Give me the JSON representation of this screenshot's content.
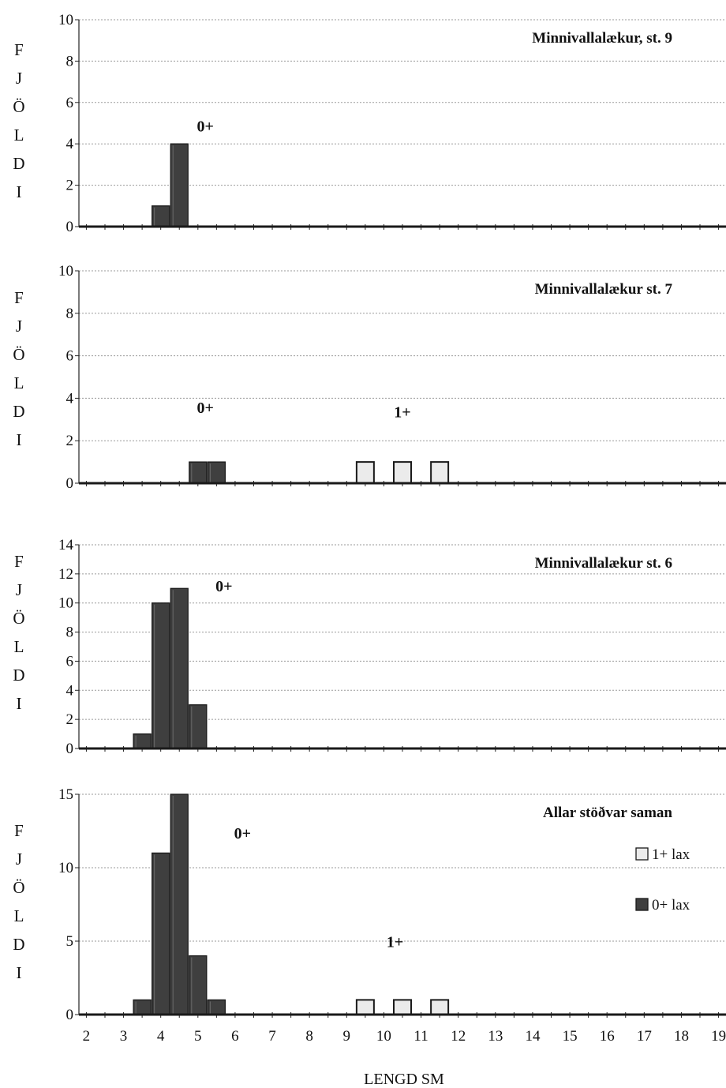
{
  "figure": {
    "xlabel": "LENGD SM",
    "ylabel": "FJÖLDI",
    "x_ticks": [
      "2",
      "3",
      "4",
      "5",
      "6",
      "7",
      "8",
      "9",
      "10",
      "11",
      "12",
      "13",
      "14",
      "15",
      "16",
      "17",
      "18",
      "19"
    ],
    "legend": [
      {
        "label": "1+ lax",
        "color": "#ebebeb"
      },
      {
        "label": "0+ lax",
        "color": "#3f3f3f"
      }
    ]
  },
  "chart_data": [
    {
      "type": "bar",
      "title": "Minnivallalækur,  st. 9",
      "ylim": [
        0,
        10
      ],
      "yticks": [
        0,
        2,
        4,
        6,
        8,
        10
      ],
      "xlim": [
        1.8,
        19.2
      ],
      "grid": true,
      "annotations": [
        {
          "text": "0+",
          "x": 5.2,
          "y": 4.6
        }
      ],
      "series": [
        {
          "name": "1+ lax",
          "x": [],
          "values": []
        },
        {
          "name": "0+ lax",
          "x": [
            4.0,
            4.5
          ],
          "values": [
            1,
            4
          ]
        }
      ]
    },
    {
      "type": "bar",
      "title": "Minnivallalækur  st. 7",
      "ylim": [
        0,
        10
      ],
      "yticks": [
        0,
        2,
        4,
        6,
        8,
        10
      ],
      "xlim": [
        1.8,
        19.2
      ],
      "grid": true,
      "annotations": [
        {
          "text": "0+",
          "x": 5.2,
          "y": 3.3
        },
        {
          "text": "1+",
          "x": 10.5,
          "y": 3.1
        }
      ],
      "series": [
        {
          "name": "1+ lax",
          "x": [
            9.5,
            10.5,
            11.5
          ],
          "values": [
            1,
            1,
            1
          ]
        },
        {
          "name": "0+ lax",
          "x": [
            5.0,
            5.5
          ],
          "values": [
            1,
            1
          ]
        }
      ]
    },
    {
      "type": "bar",
      "title": "Minnivallalækur  st. 6",
      "ylim": [
        0,
        14
      ],
      "yticks": [
        0,
        2,
        4,
        6,
        8,
        10,
        12,
        14
      ],
      "xlim": [
        1.8,
        19.2
      ],
      "grid": true,
      "annotations": [
        {
          "text": "0+",
          "x": 5.7,
          "y": 10.8
        }
      ],
      "series": [
        {
          "name": "1+ lax",
          "x": [],
          "values": []
        },
        {
          "name": "0+ lax",
          "x": [
            3.5,
            4.0,
            4.5,
            5.0
          ],
          "values": [
            1,
            10,
            11,
            3
          ]
        }
      ]
    },
    {
      "type": "bar",
      "title": "Allar stöðvar saman",
      "ylim": [
        0,
        15
      ],
      "yticks": [
        0,
        5,
        10,
        15
      ],
      "xlim": [
        1.8,
        19.2
      ],
      "grid": true,
      "annotations": [
        {
          "text": "0+",
          "x": 6.2,
          "y": 12.0
        },
        {
          "text": "1+",
          "x": 10.3,
          "y": 4.6
        }
      ],
      "series": [
        {
          "name": "1+ lax",
          "x": [
            9.5,
            10.5,
            11.5
          ],
          "values": [
            1,
            1,
            1
          ]
        },
        {
          "name": "0+ lax",
          "x": [
            3.5,
            4.0,
            4.5,
            5.0,
            5.5
          ],
          "values": [
            1,
            11,
            15,
            4,
            1
          ]
        }
      ]
    }
  ]
}
